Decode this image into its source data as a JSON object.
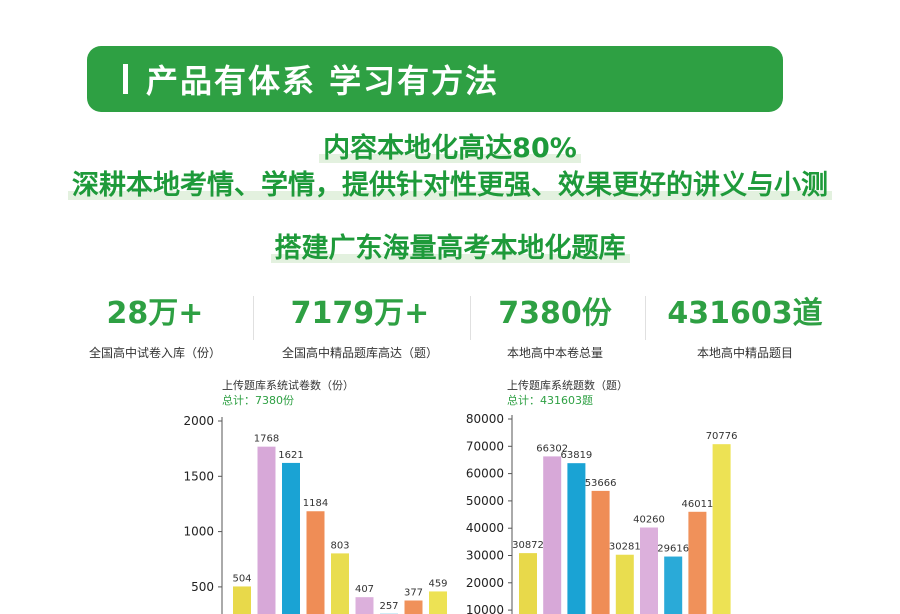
{
  "banner": {
    "title": "产品有体系 学习有方法"
  },
  "headline": {
    "line1": "内容本地化高达80%",
    "line2": "深耕本地考情、学情，提供针对性更强、效果更好的讲义与小测",
    "line3": "搭建广东海量高考本地化题库"
  },
  "stats": [
    {
      "value": "28万+",
      "label": "全国高中试卷入库（份）"
    },
    {
      "value": "7179万+",
      "label": "全国高中精品题库高达（题）"
    },
    {
      "value": "7380份",
      "label": "本地高中本卷总量"
    },
    {
      "value": "431603道",
      "label": "本地高中精品题目"
    }
  ],
  "chart_data": [
    {
      "type": "bar",
      "title": "上传题库系统试卷数（份）",
      "subtitle": "总计：7380份",
      "values": [
        504,
        1768,
        1621,
        1184,
        803,
        407,
        257,
        377,
        459
      ],
      "colors": [
        "#e8d94a",
        "#d7a8d8",
        "#1aa3d4",
        "#ef8d56",
        "#e9dd4f",
        "#dcb0dc",
        "#2aaad8",
        "#f0915a",
        "#ede254"
      ],
      "yticks": [
        500,
        1000,
        1500,
        2000
      ],
      "ylim": [
        0,
        2000
      ]
    },
    {
      "type": "bar",
      "title": "上传题库系统题数（题）",
      "subtitle": "总计：431603题",
      "values": [
        30872,
        66302,
        63819,
        53666,
        30281,
        40260,
        29616,
        46011,
        70776
      ],
      "colors": [
        "#e8d94a",
        "#d7a8d8",
        "#1aa3d4",
        "#ef8d56",
        "#e9dd4f",
        "#dcb0dc",
        "#2aaad8",
        "#f0915a",
        "#ede254"
      ],
      "yticks": [
        10000,
        20000,
        30000,
        40000,
        50000,
        60000,
        70000,
        80000
      ],
      "ylim": [
        0,
        80000
      ]
    }
  ]
}
